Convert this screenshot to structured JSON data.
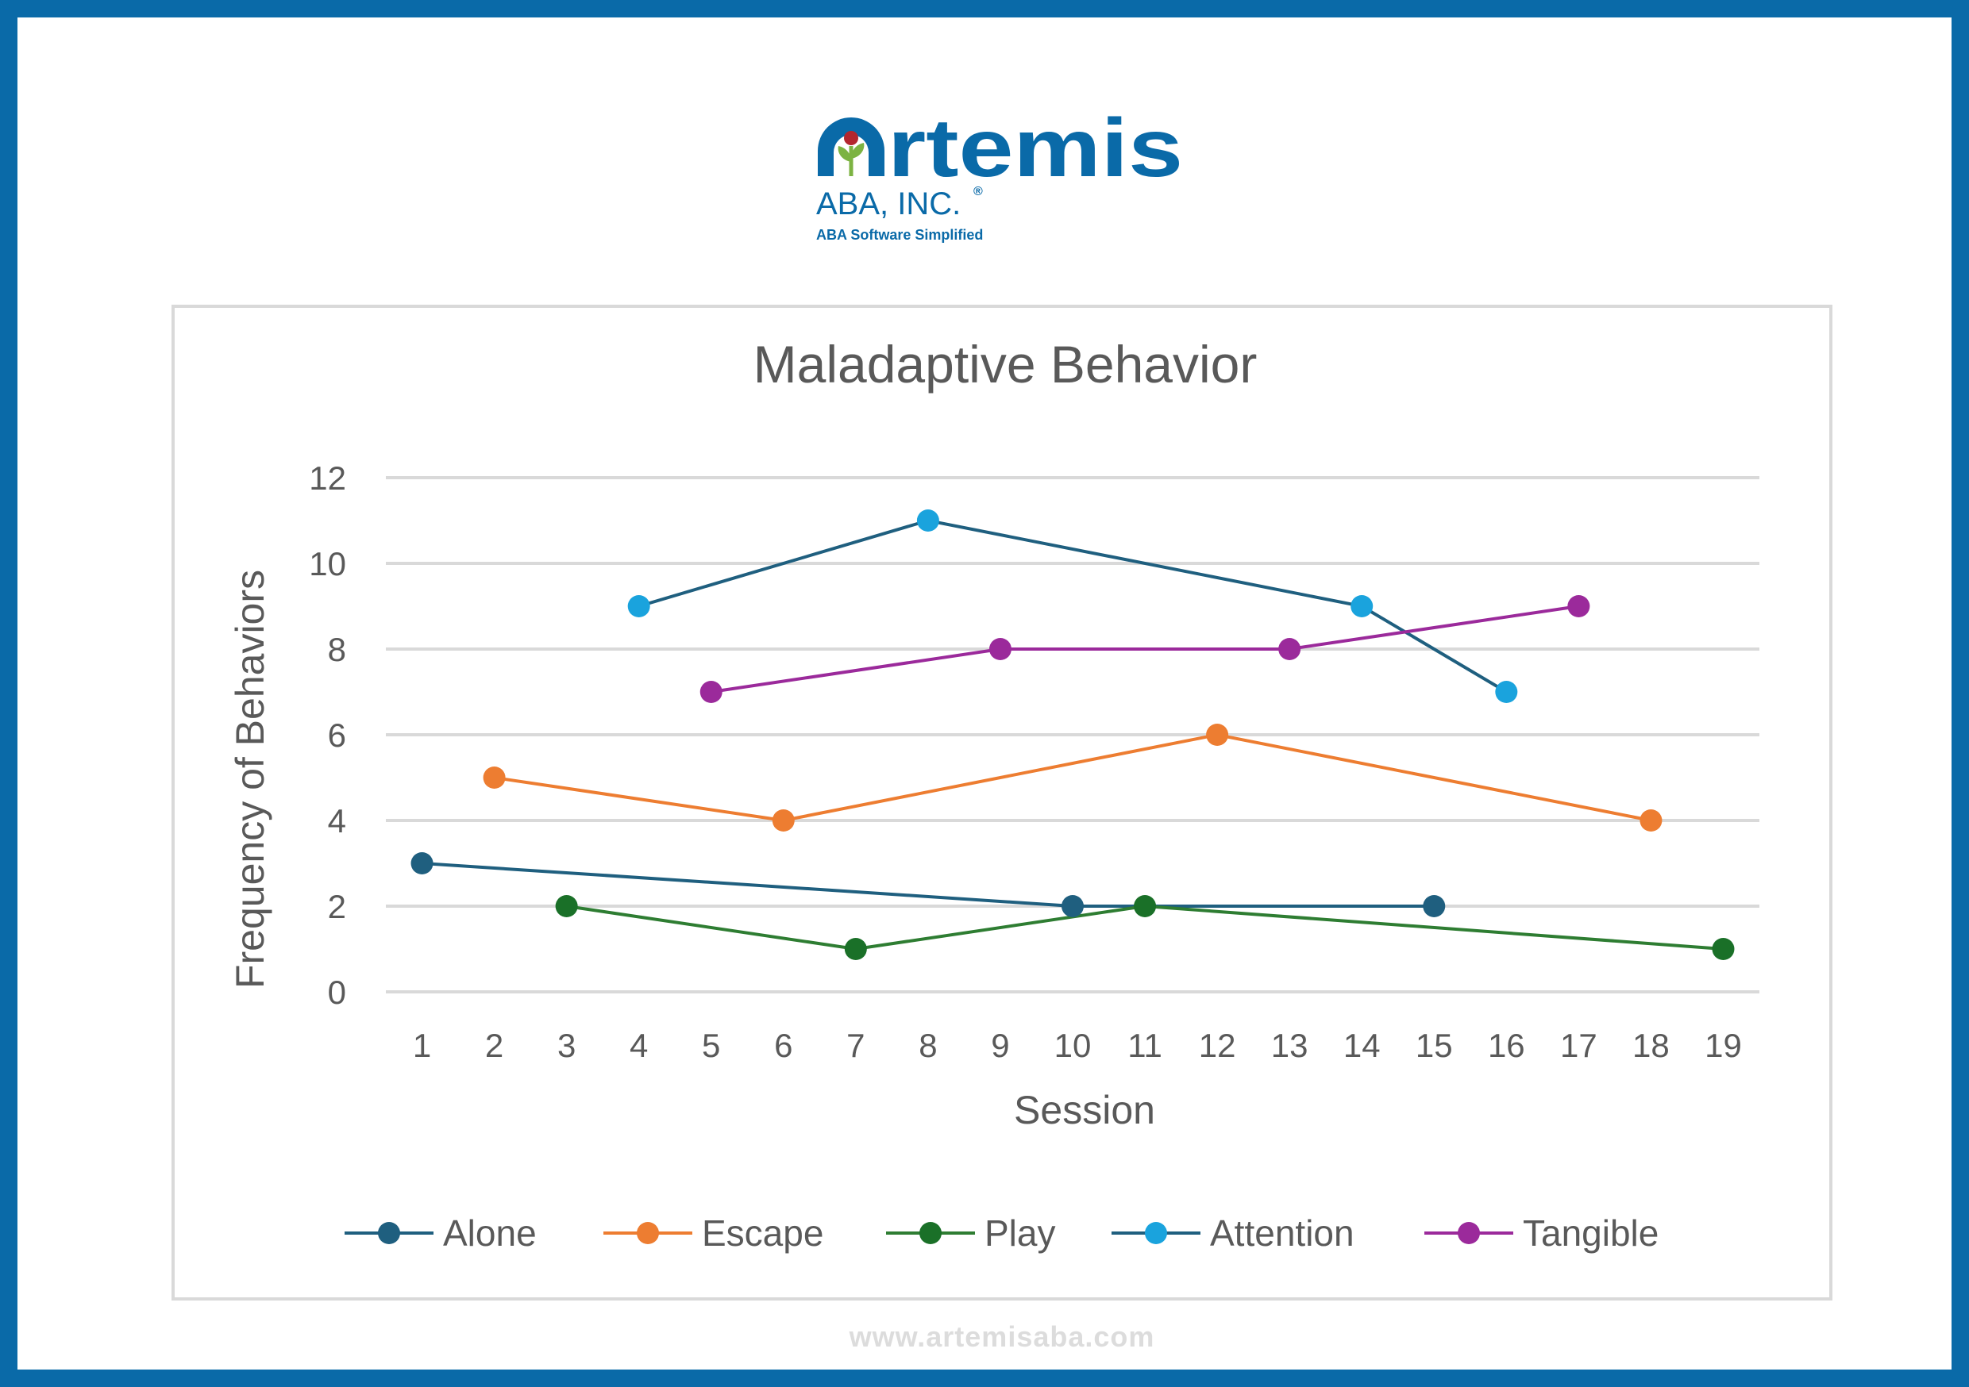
{
  "brand": {
    "name": "Artemis",
    "company": "ABA, INC.",
    "registered": "®",
    "tagline": "ABA Software Simplified",
    "website": "www.artemisaba.com",
    "color_primary": "#0a6aa8",
    "color_leaf": "#7cb342",
    "color_flower": "#b3262e"
  },
  "chart_data": {
    "type": "line",
    "title": "Maladaptive Behavior",
    "xlabel": "Session",
    "ylabel": "Frequency of Behaviors",
    "categories": [
      "1",
      "2",
      "3",
      "4",
      "5",
      "6",
      "7",
      "8",
      "9",
      "10",
      "11",
      "12",
      "13",
      "14",
      "15",
      "16",
      "17",
      "18",
      "19"
    ],
    "ylim": [
      0,
      12
    ],
    "yticks": [
      "0",
      "2",
      "4",
      "6",
      "8",
      "10",
      "12"
    ],
    "grid": true,
    "legend_position": "bottom",
    "series": [
      {
        "name": "Alone",
        "color": "#1f5f7f",
        "line_color": "#1f5f7f",
        "points": [
          [
            1,
            3
          ],
          [
            10,
            2
          ],
          [
            15,
            2
          ]
        ]
      },
      {
        "name": "Escape",
        "color": "#ed7d31",
        "line_color": "#ed7d31",
        "points": [
          [
            2,
            5
          ],
          [
            6,
            4
          ],
          [
            12,
            6
          ],
          [
            18,
            4
          ]
        ]
      },
      {
        "name": "Play",
        "color": "#1a7028",
        "line_color": "#2e7d32",
        "points": [
          [
            3,
            2
          ],
          [
            7,
            1
          ],
          [
            11,
            2
          ],
          [
            19,
            1
          ]
        ]
      },
      {
        "name": "Attention",
        "color": "#1aa3dd",
        "line_color": "#1f5f7f",
        "points": [
          [
            4,
            9
          ],
          [
            8,
            11
          ],
          [
            14,
            9
          ],
          [
            16,
            7
          ]
        ]
      },
      {
        "name": "Tangible",
        "color": "#9b2a9b",
        "line_color": "#9b2a9b",
        "points": [
          [
            5,
            7
          ],
          [
            9,
            8
          ],
          [
            13,
            8
          ],
          [
            17,
            9
          ]
        ]
      }
    ]
  }
}
